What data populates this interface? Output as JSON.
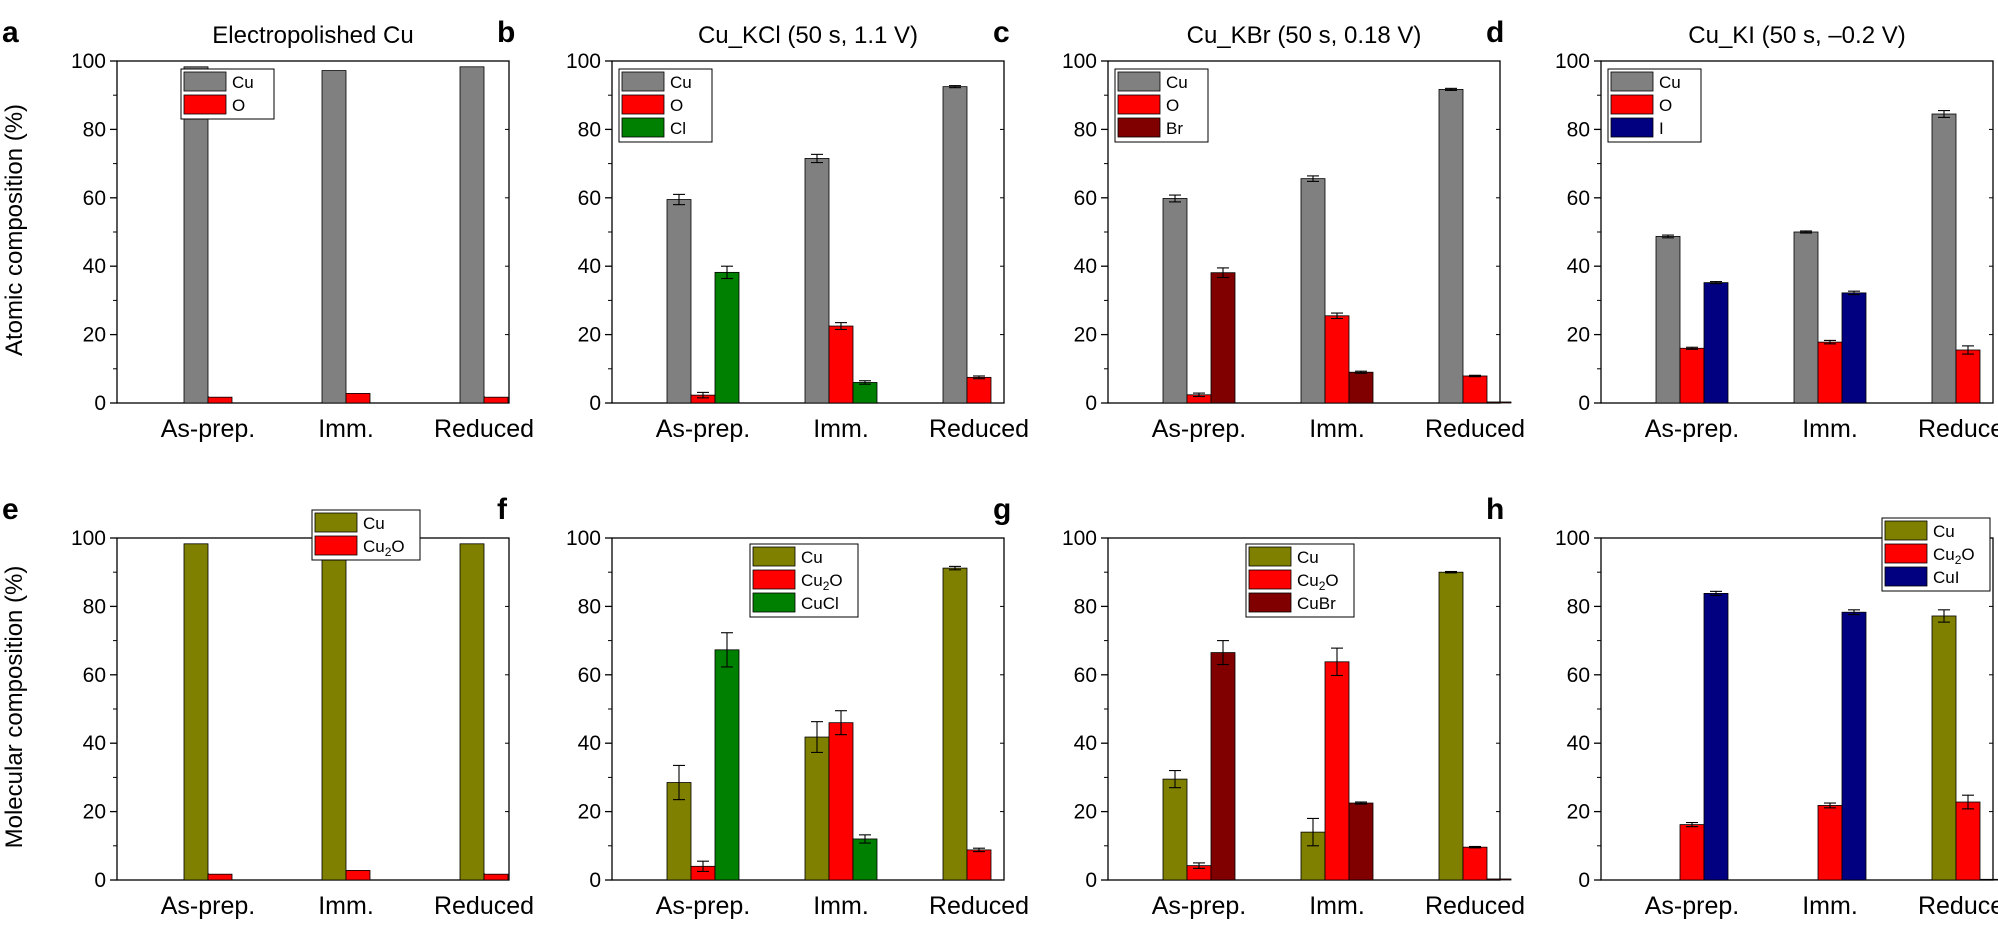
{
  "figure": {
    "ylabels": [
      "Atomic composition (%)",
      "Molecular composition (%)"
    ]
  },
  "colors": {
    "Cu": "#808080",
    "O": "#ff0000",
    "Cl": "#008000",
    "Br": "#800000",
    "I": "#000080",
    "Cu_mol": "#808000",
    "Cu2O": "#ff0000",
    "CuCl": "#008000",
    "CuBr": "#800000",
    "CuI": "#000080"
  },
  "chart_data": [
    {
      "id": "a",
      "label": "a",
      "title": "Electropolished Cu",
      "type": "bar",
      "row": 0,
      "ylim": [
        0,
        100
      ],
      "yticks": [
        "0",
        "20",
        "40",
        "60",
        "80",
        "100"
      ],
      "categories": [
        "As-prep.",
        "Imm.",
        "Reduced"
      ],
      "legend_pos": "top-center",
      "series": [
        {
          "name": "Cu",
          "legend": [
            "Cu"
          ],
          "colorKey": "Cu",
          "values": [
            98.3,
            97.2,
            98.3
          ],
          "errors": [
            0,
            0,
            0
          ]
        },
        {
          "name": "O",
          "legend": [
            "O"
          ],
          "colorKey": "O",
          "values": [
            1.7,
            2.8,
            1.7
          ],
          "errors": [
            0,
            0,
            0
          ]
        }
      ]
    },
    {
      "id": "b",
      "label": "b",
      "title": "Cu_KCl (50 s, 1.1 V)",
      "type": "bar",
      "row": 0,
      "ylim": [
        0,
        100
      ],
      "yticks": [
        "0",
        "20",
        "40",
        "60",
        "80",
        "100"
      ],
      "categories": [
        "As-prep.",
        "Imm.",
        "Reduced"
      ],
      "legend_pos": "top-left",
      "series": [
        {
          "name": "Cu",
          "legend": [
            "Cu"
          ],
          "colorKey": "Cu",
          "values": [
            59.5,
            71.5,
            92.5
          ],
          "errors": [
            1.5,
            1.2,
            0.3
          ]
        },
        {
          "name": "O",
          "legend": [
            "O"
          ],
          "colorKey": "O",
          "values": [
            2.3,
            22.5,
            7.5
          ],
          "errors": [
            0.8,
            1.0,
            0.4
          ]
        },
        {
          "name": "Cl",
          "legend": [
            "Cl"
          ],
          "colorKey": "Cl",
          "values": [
            38.2,
            6.0,
            0
          ],
          "errors": [
            1.8,
            0.5,
            0
          ]
        }
      ]
    },
    {
      "id": "c",
      "label": "c",
      "title": "Cu_KBr (50 s, 0.18 V)",
      "type": "bar",
      "row": 0,
      "ylim": [
        0,
        100
      ],
      "yticks": [
        "0",
        "20",
        "40",
        "60",
        "80",
        "100"
      ],
      "categories": [
        "As-prep.",
        "Imm.",
        "Reduced"
      ],
      "legend_pos": "top-left",
      "series": [
        {
          "name": "Cu",
          "legend": [
            "Cu"
          ],
          "colorKey": "Cu",
          "values": [
            59.8,
            65.6,
            91.7
          ],
          "errors": [
            1.0,
            0.8,
            0.3
          ]
        },
        {
          "name": "O",
          "legend": [
            "O"
          ],
          "colorKey": "O",
          "values": [
            2.4,
            25.5,
            7.9
          ],
          "errors": [
            0.5,
            0.8,
            0.2
          ]
        },
        {
          "name": "Br",
          "legend": [
            "Br"
          ],
          "colorKey": "Br",
          "values": [
            38.1,
            9.0,
            0.3
          ],
          "errors": [
            1.4,
            0.3,
            0
          ]
        }
      ]
    },
    {
      "id": "d",
      "label": "d",
      "title": "Cu_KI (50 s, –0.2 V)",
      "type": "bar",
      "row": 0,
      "ylim": [
        0,
        100
      ],
      "yticks": [
        "0",
        "20",
        "40",
        "60",
        "80",
        "100"
      ],
      "categories": [
        "As-prep.",
        "Imm.",
        "Reduced"
      ],
      "legend_pos": "top-left",
      "series": [
        {
          "name": "Cu",
          "legend": [
            "Cu"
          ],
          "colorKey": "Cu",
          "values": [
            48.7,
            50.0,
            84.5
          ],
          "errors": [
            0.4,
            0.3,
            1.0
          ]
        },
        {
          "name": "O",
          "legend": [
            "O"
          ],
          "colorKey": "O",
          "values": [
            16.0,
            17.8,
            15.5
          ],
          "errors": [
            0.3,
            0.5,
            1.2
          ]
        },
        {
          "name": "I",
          "legend": [
            "I"
          ],
          "colorKey": "I",
          "values": [
            35.2,
            32.2,
            0
          ],
          "errors": [
            0.3,
            0.5,
            0
          ]
        }
      ]
    },
    {
      "id": "e",
      "label": "e",
      "title": "",
      "type": "bar",
      "row": 1,
      "ylim": [
        0,
        100
      ],
      "yticks": [
        "0",
        "20",
        "40",
        "60",
        "80",
        "100"
      ],
      "categories": [
        "As-prep.",
        "Imm.",
        "Reduced"
      ],
      "legend_pos": "top-center",
      "series": [
        {
          "name": "Cu",
          "legend": [
            "Cu"
          ],
          "colorKey": "Cu_mol",
          "values": [
            98.3,
            97.2,
            98.3
          ],
          "errors": [
            0,
            0,
            0
          ]
        },
        {
          "name": "Cu2O",
          "legend": [
            "Cu",
            "2",
            "O"
          ],
          "colorKey": "Cu2O",
          "values": [
            1.7,
            2.8,
            1.7
          ],
          "errors": [
            0,
            0,
            0
          ]
        }
      ]
    },
    {
      "id": "f",
      "label": "f",
      "title": "",
      "type": "bar",
      "row": 1,
      "ylim": [
        0,
        100
      ],
      "yticks": [
        "0",
        "20",
        "40",
        "60",
        "80",
        "100"
      ],
      "categories": [
        "As-prep.",
        "Imm.",
        "Reduced"
      ],
      "legend_pos": "top-right",
      "series": [
        {
          "name": "Cu",
          "legend": [
            "Cu"
          ],
          "colorKey": "Cu_mol",
          "values": [
            28.5,
            41.8,
            91.2
          ],
          "errors": [
            5.0,
            4.5,
            0.5
          ]
        },
        {
          "name": "Cu2O",
          "legend": [
            "Cu",
            "2",
            "O"
          ],
          "colorKey": "Cu2O",
          "values": [
            4.0,
            46.0,
            8.8
          ],
          "errors": [
            1.5,
            3.5,
            0.5
          ]
        },
        {
          "name": "CuCl",
          "legend": [
            "CuCl"
          ],
          "colorKey": "CuCl",
          "values": [
            67.3,
            12.0,
            0
          ],
          "errors": [
            5.0,
            1.2,
            0
          ]
        }
      ]
    },
    {
      "id": "g",
      "label": "g",
      "title": "",
      "type": "bar",
      "row": 1,
      "ylim": [
        0,
        100
      ],
      "yticks": [
        "0",
        "20",
        "40",
        "60",
        "80",
        "100"
      ],
      "categories": [
        "As-prep.",
        "Imm.",
        "Reduced"
      ],
      "legend_pos": "top-right",
      "series": [
        {
          "name": "Cu",
          "legend": [
            "Cu"
          ],
          "colorKey": "Cu_mol",
          "values": [
            29.5,
            14.0,
            90.0
          ],
          "errors": [
            2.5,
            4.0,
            0.2
          ]
        },
        {
          "name": "Cu2O",
          "legend": [
            "Cu",
            "2",
            "O"
          ],
          "colorKey": "Cu2O",
          "values": [
            4.2,
            63.8,
            9.6
          ],
          "errors": [
            0.8,
            4.0,
            0.2
          ]
        },
        {
          "name": "CuBr",
          "legend": [
            "CuBr"
          ],
          "colorKey": "CuBr",
          "values": [
            66.5,
            22.5,
            0.3
          ],
          "errors": [
            3.5,
            0.3,
            0
          ]
        }
      ]
    },
    {
      "id": "h",
      "label": "h",
      "title": "",
      "type": "bar",
      "row": 1,
      "ylim": [
        0,
        100
      ],
      "yticks": [
        "0",
        "20",
        "40",
        "60",
        "80",
        "100"
      ],
      "categories": [
        "As-prep.",
        "Imm.",
        "Reduced"
      ],
      "legend_pos": "top-right",
      "series": [
        {
          "name": "Cu",
          "legend": [
            "Cu"
          ],
          "colorKey": "Cu_mol",
          "values": [
            0,
            0,
            77.2
          ],
          "errors": [
            0,
            0,
            1.8
          ]
        },
        {
          "name": "Cu2O",
          "legend": [
            "Cu",
            "2",
            "O"
          ],
          "colorKey": "Cu2O",
          "values": [
            16.2,
            21.8,
            22.8
          ],
          "errors": [
            0.6,
            0.7,
            2.0
          ]
        },
        {
          "name": "CuI",
          "legend": [
            "CuI"
          ],
          "colorKey": "CuI",
          "values": [
            83.8,
            78.3,
            0.2
          ],
          "errors": [
            0.6,
            0.7,
            0
          ]
        }
      ]
    }
  ]
}
